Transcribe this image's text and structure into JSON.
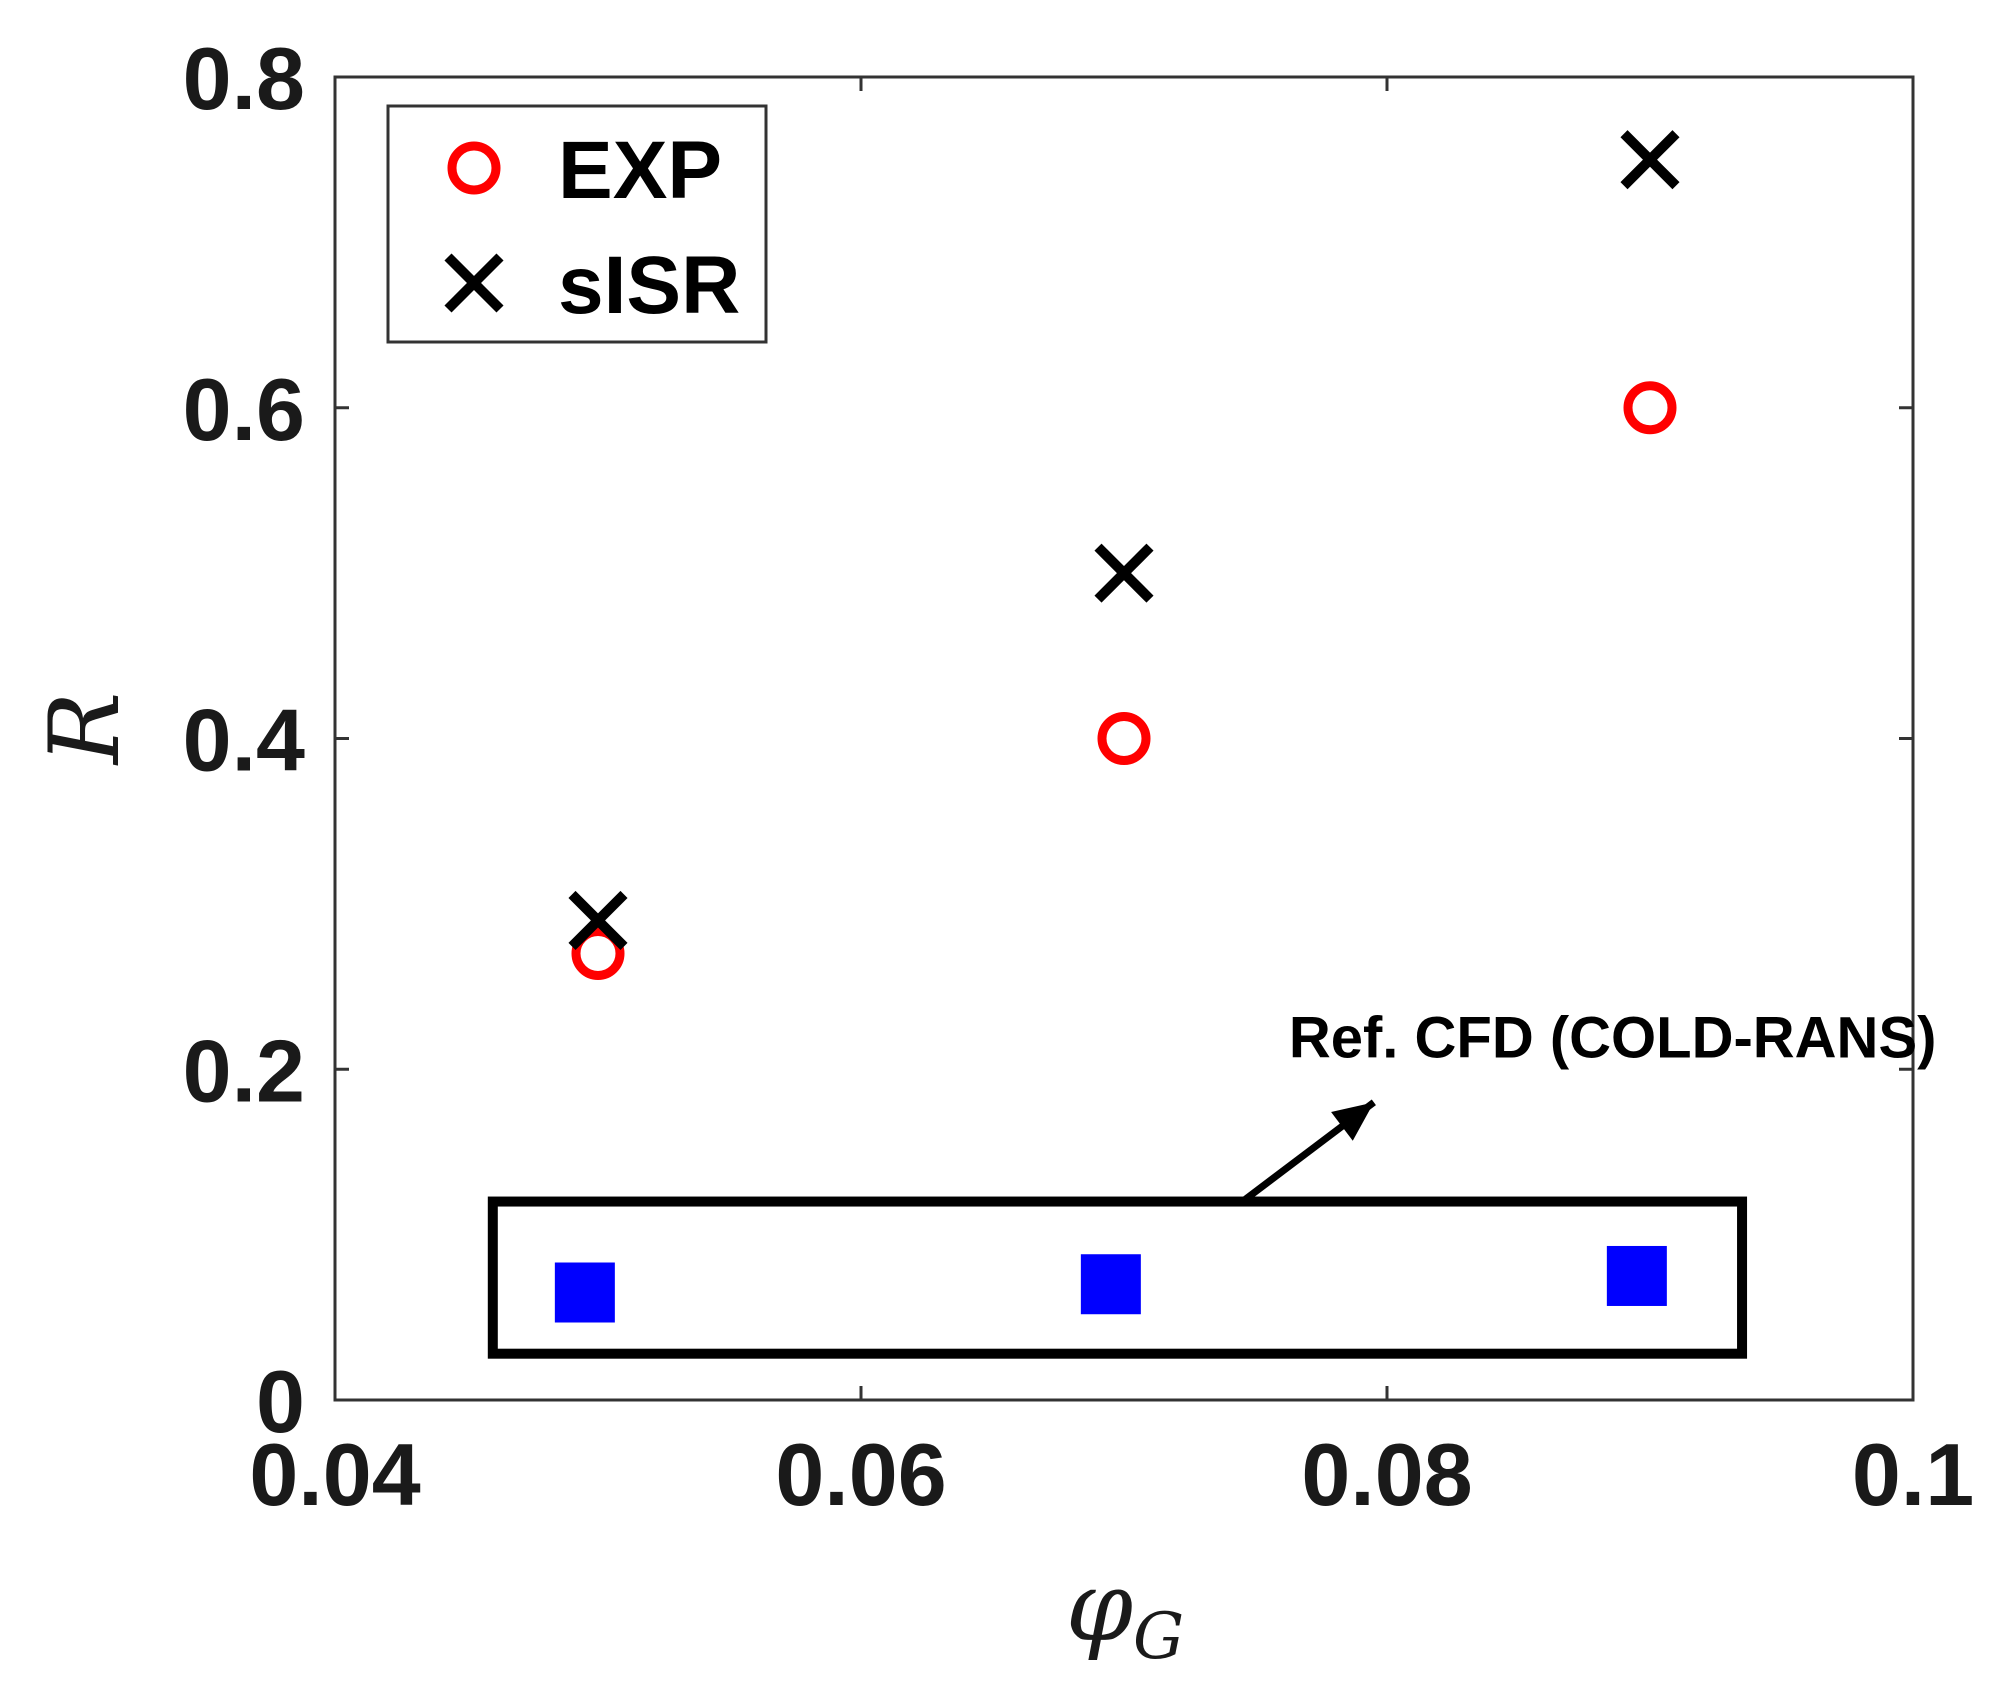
{
  "chart_data": {
    "type": "scatter",
    "xlabel": "φ",
    "xlabel_sub": "G",
    "ylabel": "R",
    "xlim": [
      0.04,
      0.1
    ],
    "ylim": [
      0,
      0.8
    ],
    "x_ticks": [
      "0.04",
      "0.06",
      "0.08",
      "0.1"
    ],
    "y_ticks": [
      "0",
      "0.2",
      "0.4",
      "0.6",
      "0.8"
    ],
    "grid": false,
    "legend_position": "top-left",
    "series": [
      {
        "name": "EXP",
        "marker": "circle",
        "color": "#ff0000",
        "points": [
          [
            0.05,
            0.27
          ],
          [
            0.07,
            0.4
          ],
          [
            0.09,
            0.6
          ]
        ]
      },
      {
        "name": "sISR",
        "marker": "x",
        "color": "#000000",
        "points": [
          [
            0.05,
            0.29
          ],
          [
            0.07,
            0.5
          ],
          [
            0.09,
            0.75
          ]
        ]
      },
      {
        "name": "",
        "marker": "square",
        "color": "#0000ff",
        "points": [
          [
            0.0495,
            0.065
          ],
          [
            0.0695,
            0.07
          ],
          [
            0.0895,
            0.075
          ]
        ]
      }
    ],
    "annotation": {
      "text": "Ref. CFD (COLD-RANS)",
      "box_x": [
        0.046,
        0.0935
      ],
      "box_y": [
        0.028,
        0.12
      ],
      "arrow_from": [
        0.0745,
        0.12
      ],
      "arrow_to": [
        0.0795,
        0.18
      ]
    }
  }
}
